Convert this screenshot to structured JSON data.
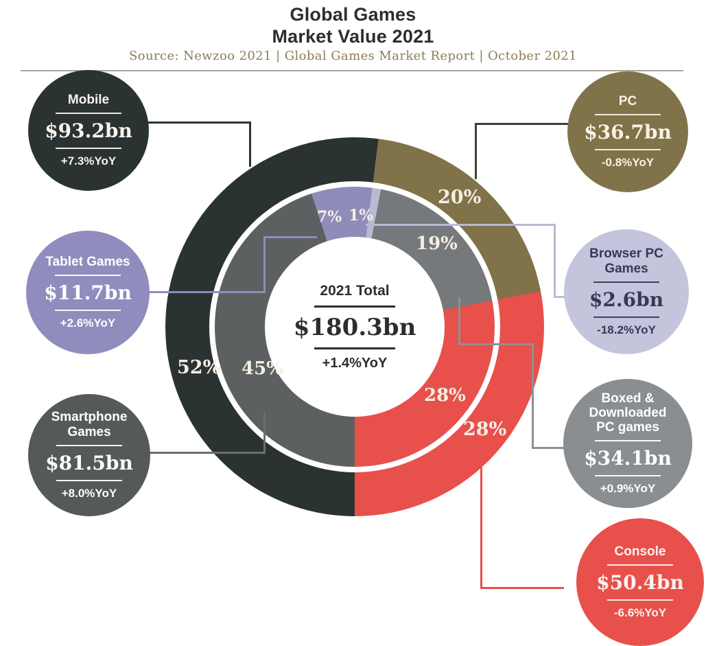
{
  "title": {
    "line1": "Global Games",
    "line2": "Market Value 2021"
  },
  "source_line": "Source: Newzoo 2021 | Global Games Market Report | October 2021",
  "center": {
    "label": "2021 Total",
    "value": "$180.3bn",
    "yoy": "+1.4%YoY"
  },
  "badges": [
    {
      "id": "mobile",
      "label": "Mobile",
      "value": "$93.2bn",
      "yoy": "+7.3%YoY",
      "color": "#2b3332",
      "text_color": "#f7f4ec"
    },
    {
      "id": "pc",
      "label": "PC",
      "value": "$36.7bn",
      "yoy": "-0.8%YoY",
      "color": "#807349",
      "text_color": "#f7f2e4"
    },
    {
      "id": "tablet",
      "label": "Tablet Games",
      "value": "$11.7bn",
      "yoy": "+2.6%YoY",
      "color": "#908cbd",
      "text_color": "#ffffff"
    },
    {
      "id": "browser",
      "label": "Browser PC Games",
      "value": "$2.6bn",
      "yoy": "-18.2%YoY",
      "color": "#c5c4dd",
      "text_color": "#333a55"
    },
    {
      "id": "smartphone",
      "label": "Smartphone Games",
      "value": "$81.5bn",
      "yoy": "+8.0%YoY",
      "color": "#56595a",
      "text_color": "#ffffff"
    },
    {
      "id": "boxed",
      "label": "Boxed & Downloaded PC games",
      "value": "$34.1bn",
      "yoy": "+0.9%YoY",
      "color": "#8b8e90",
      "text_color": "#ffffff"
    },
    {
      "id": "console",
      "label": "Console",
      "value": "$50.4bn",
      "yoy": "-6.6%YoY",
      "color": "#e8504b",
      "text_color": "#fdf3ef"
    }
  ],
  "chart_data": {
    "type": "pie",
    "title": "Global Games Market Value 2021",
    "subtitle": "Source: Newzoo 2021 | Global Games Market Report | October 2021",
    "legend_position": "around-badges",
    "total": {
      "label": "2021 Total",
      "value": "$180.3bn",
      "value_bn": 180.3,
      "yoy": "+1.4%YoY",
      "yoy_pct": 1.4
    },
    "rings": {
      "outer": {
        "name": "Platforms",
        "segments": [
          {
            "label": "PC",
            "pct": 20,
            "pct_label": "20%",
            "value_bn": 36.7,
            "yoy": "-0.8%YoY",
            "color": "#807349",
            "start_deg": 7.2
          },
          {
            "label": "Console",
            "pct": 28,
            "pct_label": "28%",
            "value_bn": 50.4,
            "yoy": "-6.6%YoY",
            "color": "#e8504b",
            "start_deg": 79.2
          },
          {
            "label": "Mobile",
            "pct": 52,
            "pct_label": "52%",
            "value_bn": 93.2,
            "yoy": "+7.3%YoY",
            "color": "#2b3332",
            "start_deg": 180
          }
        ]
      },
      "inner": {
        "name": "Sub-segments",
        "segments": [
          {
            "label": "Browser PC Games",
            "pct": 1,
            "pct_label": "1%",
            "value_bn": 2.6,
            "yoy": "-18.2%YoY",
            "color": "#b9b9d6",
            "start_deg": 7.2
          },
          {
            "label": "Boxed & Downloaded PC games",
            "pct": 19,
            "pct_label": "19%",
            "value_bn": 34.1,
            "yoy": "+0.9%YoY",
            "color": "#76797c",
            "start_deg": 10.8
          },
          {
            "label": "Console",
            "pct": 28,
            "pct_label": "28%",
            "value_bn": 50.4,
            "yoy": "-6.6%YoY",
            "color": "#e8504b",
            "start_deg": 79.2
          },
          {
            "label": "Smartphone Games",
            "pct": 45,
            "pct_label": "45%",
            "value_bn": 81.5,
            "yoy": "+8.0%YoY",
            "color": "#5d6060",
            "start_deg": 180
          },
          {
            "label": "Tablet Games",
            "pct": 7,
            "pct_label": "7%",
            "value_bn": 11.7,
            "yoy": "+2.6%YoY",
            "color": "#8f8cba",
            "start_deg": 342
          }
        ]
      }
    }
  }
}
